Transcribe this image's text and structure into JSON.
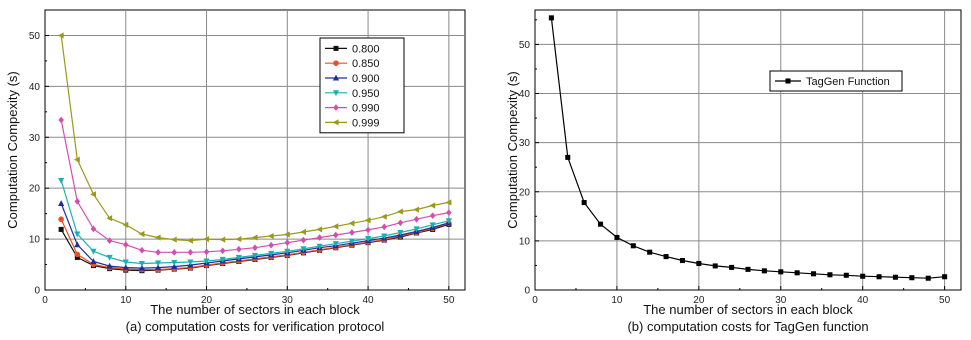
{
  "chart_data": [
    {
      "type": "line",
      "caption": "(a) computation costs for verification protocol",
      "xlabel": "The number of sectors in each block",
      "ylabel": "Computation Compexity (s)",
      "xlim": [
        0,
        52
      ],
      "ylim": [
        0,
        55
      ],
      "xticks": [
        "0",
        "10",
        "20",
        "30",
        "40",
        "50"
      ],
      "yticks": [
        "0",
        "10",
        "20",
        "30",
        "40",
        "50"
      ],
      "grid": true,
      "legend_position": "top-right",
      "x": [
        2,
        4,
        6,
        8,
        10,
        12,
        14,
        16,
        18,
        20,
        22,
        24,
        26,
        28,
        30,
        32,
        34,
        36,
        38,
        40,
        42,
        44,
        46,
        48,
        50
      ],
      "series": [
        {
          "name": "0.800",
          "color": "#111111",
          "marker": "square",
          "values": [
            11.9,
            6.4,
            4.8,
            4.2,
            3.9,
            3.8,
            3.9,
            4.1,
            4.3,
            4.8,
            5.2,
            5.6,
            6.0,
            6.4,
            6.8,
            7.3,
            7.8,
            8.3,
            8.8,
            9.3,
            9.8,
            10.4,
            11.2,
            11.9,
            12.9
          ]
        },
        {
          "name": "0.850",
          "color": "#e8502a",
          "marker": "circle",
          "values": [
            13.9,
            7.0,
            5.0,
            4.4,
            4.1,
            4.0,
            4.0,
            4.2,
            4.4,
            4.9,
            5.3,
            5.7,
            6.1,
            6.5,
            6.9,
            7.4,
            7.9,
            8.4,
            8.9,
            9.4,
            9.9,
            10.6,
            11.3,
            12.1,
            13.1
          ]
        },
        {
          "name": "0.900",
          "color": "#1f2e9a",
          "marker": "triangle-up",
          "values": [
            17.0,
            8.9,
            5.6,
            4.7,
            4.4,
            4.3,
            4.4,
            4.6,
            4.9,
            5.3,
            5.7,
            6.1,
            6.5,
            6.9,
            7.3,
            7.8,
            8.3,
            8.7,
            9.2,
            9.7,
            10.2,
            10.8,
            11.5,
            12.3,
            13.2
          ]
        },
        {
          "name": "0.950",
          "color": "#1ab0b3",
          "marker": "triangle-down",
          "values": [
            21.5,
            11.0,
            7.6,
            6.4,
            5.5,
            5.2,
            5.3,
            5.4,
            5.5,
            5.7,
            6.0,
            6.4,
            6.8,
            7.2,
            7.6,
            8.1,
            8.6,
            9.1,
            9.6,
            10.1,
            10.6,
            11.3,
            12.0,
            12.8,
            13.6
          ]
        },
        {
          "name": "0.990",
          "color": "#d050b0",
          "marker": "diamond",
          "values": [
            33.4,
            17.4,
            12.0,
            9.7,
            8.9,
            7.8,
            7.4,
            7.4,
            7.4,
            7.5,
            7.7,
            8.0,
            8.3,
            8.8,
            9.3,
            9.8,
            10.3,
            10.8,
            11.3,
            11.8,
            12.4,
            13.2,
            13.9,
            14.6,
            15.2
          ]
        },
        {
          "name": "0.999",
          "color": "#9a9a1a",
          "marker": "triangle-left",
          "values": [
            50.0,
            25.6,
            18.8,
            14.1,
            12.8,
            11.0,
            10.3,
            9.9,
            9.7,
            10.0,
            9.9,
            10.0,
            10.3,
            10.6,
            10.9,
            11.4,
            11.9,
            12.5,
            13.1,
            13.7,
            14.4,
            15.4,
            15.8,
            16.6,
            17.2
          ]
        }
      ]
    },
    {
      "type": "line",
      "caption": "(b) computation costs for TagGen function",
      "xlabel": "The number of sectors in each block",
      "ylabel": "Computation Compexity (s)",
      "xlim": [
        0,
        52
      ],
      "ylim": [
        0,
        57
      ],
      "xticks": [
        "0",
        "10",
        "20",
        "30",
        "40",
        "50"
      ],
      "yticks": [
        "0",
        "10",
        "20",
        "30",
        "40",
        "50"
      ],
      "grid": true,
      "legend_position": "top-right",
      "x": [
        2,
        4,
        6,
        8,
        10,
        12,
        14,
        16,
        18,
        20,
        22,
        24,
        26,
        28,
        30,
        32,
        34,
        36,
        38,
        40,
        42,
        44,
        46,
        48,
        50
      ],
      "series": [
        {
          "name": "TagGen Function",
          "color": "#000000",
          "marker": "square",
          "values": [
            55.4,
            27.0,
            17.8,
            13.4,
            10.7,
            9.0,
            7.7,
            6.8,
            6.0,
            5.4,
            4.9,
            4.6,
            4.2,
            3.9,
            3.7,
            3.5,
            3.3,
            3.1,
            3.0,
            2.8,
            2.7,
            2.6,
            2.5,
            2.4,
            2.7
          ]
        }
      ]
    }
  ]
}
